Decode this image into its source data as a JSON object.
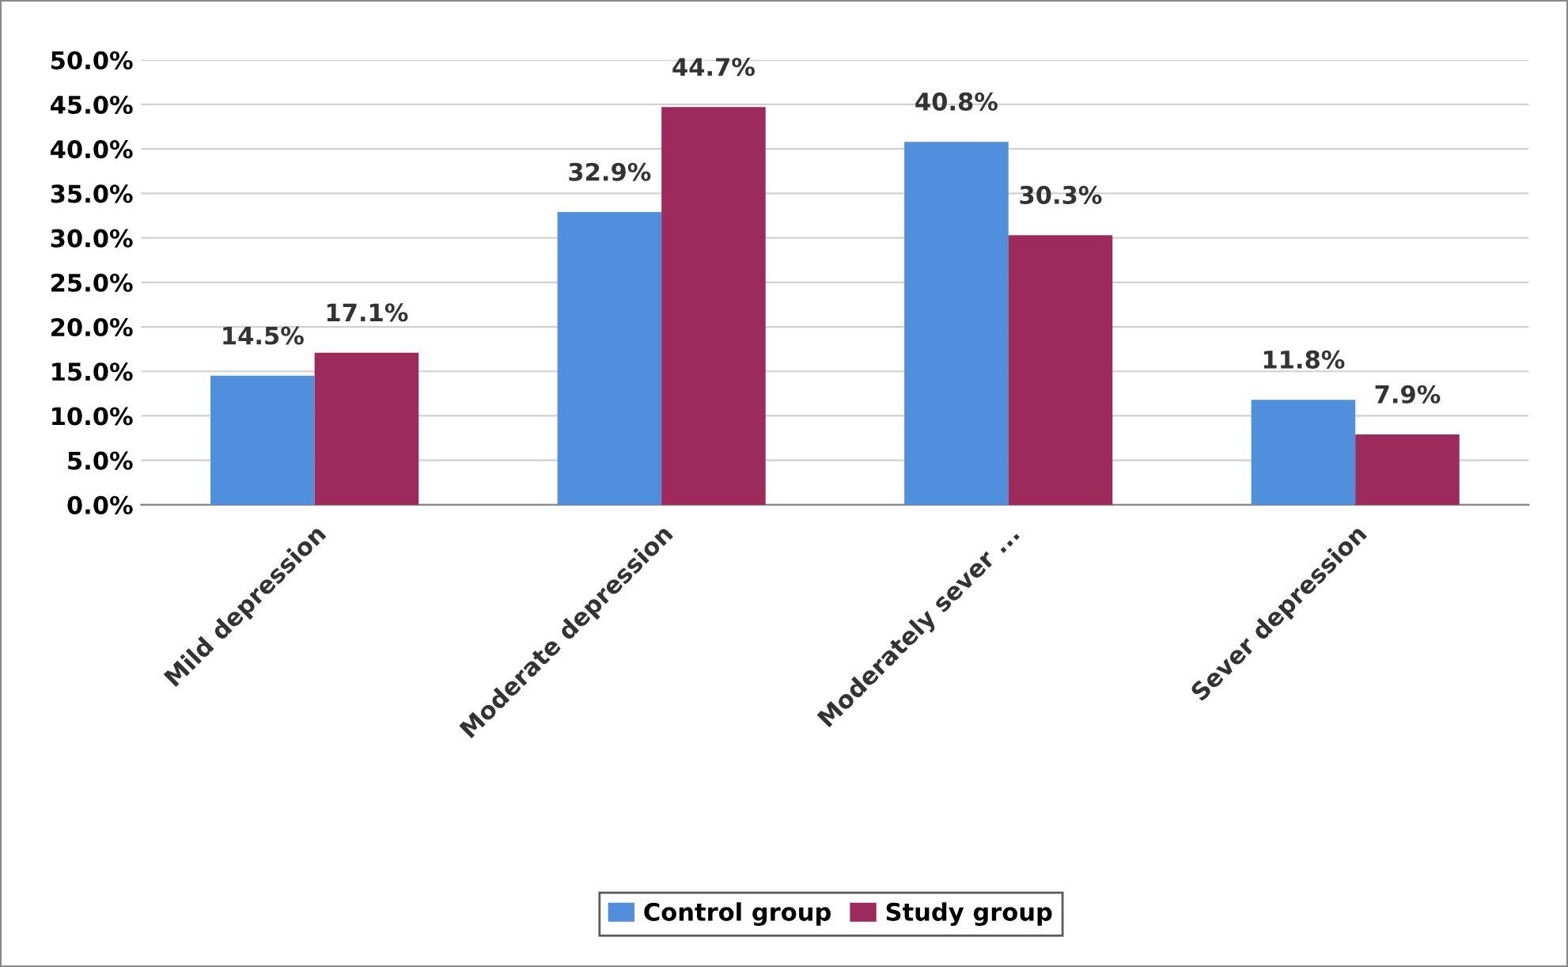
{
  "chart_data": {
    "type": "bar",
    "categories": [
      "Mild depression",
      "Moderate depression",
      "Moderately sever ...",
      "Sever depression"
    ],
    "series": [
      {
        "name": "Control group",
        "color": "#4f8fdb",
        "values": [
          14.5,
          32.9,
          40.8,
          11.8
        ],
        "value_labels": [
          "14.5%",
          "32.9%",
          "40.8%",
          "11.8%"
        ]
      },
      {
        "name": "Study group",
        "color": "#9c2a5a",
        "values": [
          17.1,
          44.7,
          30.3,
          7.9
        ],
        "value_labels": [
          "17.1%",
          "44.7%",
          "30.3%",
          "7.9%"
        ]
      }
    ],
    "ylim": [
      0,
      50
    ],
    "yticks": [
      {
        "value": 0,
        "label": "0.0%"
      },
      {
        "value": 5,
        "label": "5.0%"
      },
      {
        "value": 10,
        "label": "10.0%"
      },
      {
        "value": 15,
        "label": "15.0%"
      },
      {
        "value": 20,
        "label": "20.0%"
      },
      {
        "value": 25,
        "label": "25.0%"
      },
      {
        "value": 30,
        "label": "30.0%"
      },
      {
        "value": 35,
        "label": "35.0%"
      },
      {
        "value": 40,
        "label": "40.0%"
      },
      {
        "value": 45,
        "label": "45.0%"
      },
      {
        "value": 50,
        "label": "50.0%"
      }
    ],
    "grid": "y",
    "legend": "bottom"
  }
}
